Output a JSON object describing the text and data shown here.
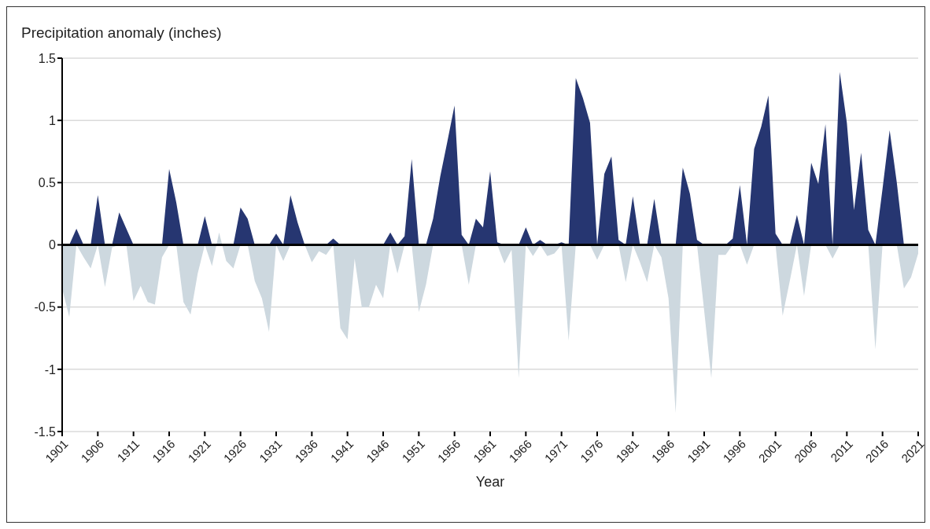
{
  "chart_data": {
    "type": "area",
    "ylabel": "Precipitation anomaly (inches)",
    "xlabel": "Year",
    "x": [
      1901,
      1902,
      1903,
      1904,
      1905,
      1906,
      1907,
      1908,
      1909,
      1910,
      1911,
      1912,
      1913,
      1914,
      1915,
      1916,
      1917,
      1918,
      1919,
      1920,
      1921,
      1922,
      1923,
      1924,
      1925,
      1926,
      1927,
      1928,
      1929,
      1930,
      1931,
      1932,
      1933,
      1934,
      1935,
      1936,
      1937,
      1938,
      1939,
      1940,
      1941,
      1942,
      1943,
      1944,
      1945,
      1946,
      1947,
      1948,
      1949,
      1950,
      1951,
      1952,
      1953,
      1954,
      1955,
      1956,
      1957,
      1958,
      1959,
      1960,
      1961,
      1962,
      1963,
      1964,
      1965,
      1966,
      1967,
      1968,
      1969,
      1970,
      1971,
      1972,
      1973,
      1974,
      1975,
      1976,
      1977,
      1978,
      1979,
      1980,
      1981,
      1982,
      1983,
      1984,
      1985,
      1986,
      1987,
      1988,
      1989,
      1990,
      1991,
      1992,
      1993,
      1994,
      1995,
      1996,
      1997,
      1998,
      1999,
      2000,
      2001,
      2002,
      2003,
      2004,
      2005,
      2006,
      2007,
      2008,
      2009,
      2010,
      2011,
      2012,
      2013,
      2014,
      2015,
      2016,
      2017,
      2018,
      2019,
      2020,
      2021
    ],
    "series": [
      {
        "color": "#cdd8df",
        "values": [
          -0.35,
          -0.58,
          0,
          -0.1,
          -0.19,
          0,
          -0.34,
          -0.02,
          0,
          0,
          -0.45,
          -0.33,
          -0.46,
          -0.48,
          -0.1,
          0,
          0,
          -0.46,
          -0.56,
          -0.23,
          0,
          -0.17,
          0.1,
          -0.13,
          -0.19,
          0,
          0,
          -0.29,
          -0.43,
          -0.7,
          0,
          -0.13,
          0,
          0,
          0,
          -0.14,
          -0.05,
          -0.08,
          0,
          -0.67,
          -0.76,
          -0.11,
          -0.5,
          -0.5,
          -0.32,
          -0.43,
          0,
          -0.23,
          0,
          0,
          -0.54,
          -0.32,
          0,
          0,
          0,
          0,
          0,
          -0.32,
          0,
          0,
          0,
          0,
          -0.15,
          -0.04,
          -1.07,
          0,
          -0.09,
          0,
          -0.09,
          -0.07,
          0,
          -0.77,
          0,
          0,
          0,
          -0.12,
          0,
          0,
          0,
          -0.3,
          0,
          -0.14,
          -0.3,
          0,
          -0.1,
          -0.43,
          -1.35,
          0,
          0,
          0,
          -0.53,
          -1.07,
          -0.08,
          -0.08,
          0,
          0,
          -0.16,
          0,
          0,
          0,
          0,
          -0.57,
          -0.29,
          0,
          -0.41,
          0,
          0,
          0,
          -0.11,
          0,
          0,
          0,
          0,
          0,
          -0.84,
          0,
          0,
          0,
          -0.35,
          -0.26,
          -0.07
        ]
      },
      {
        "color": "#263671",
        "values": [
          0,
          0,
          0.13,
          0,
          0,
          0.4,
          0,
          0,
          0.26,
          0.13,
          0,
          0,
          0,
          0,
          0,
          0.61,
          0.34,
          0,
          0,
          0,
          0.23,
          0,
          0,
          0,
          0,
          0.3,
          0.21,
          0,
          0,
          0,
          0.09,
          0,
          0.4,
          0.18,
          0,
          0,
          0,
          0,
          0.05,
          0,
          0,
          0,
          0,
          0,
          0,
          0,
          0.1,
          0,
          0.07,
          0.69,
          0,
          0,
          0.21,
          0.55,
          0.83,
          1.12,
          0.08,
          0,
          0.21,
          0.14,
          0.59,
          0.02,
          0,
          0,
          0,
          0.14,
          0,
          0.04,
          0,
          0,
          0.02,
          0,
          1.34,
          1.18,
          0.98,
          0,
          0.57,
          0.71,
          0.04,
          0,
          0.39,
          0,
          0,
          0.37,
          0,
          0,
          0,
          0.62,
          0.41,
          0.04,
          0,
          0,
          0,
          0,
          0.05,
          0.48,
          0,
          0.77,
          0.95,
          1.2,
          0.09,
          0,
          0,
          0.24,
          0,
          0.66,
          0.49,
          0.97,
          0,
          1.39,
          0.98,
          0.28,
          0.74,
          0.12,
          0,
          0.45,
          0.92,
          0.5,
          0,
          0,
          0
        ]
      }
    ],
    "xlim": [
      1901,
      2021
    ],
    "xticks": [
      1901,
      1906,
      1911,
      1916,
      1921,
      1926,
      1931,
      1936,
      1941,
      1946,
      1951,
      1956,
      1961,
      1966,
      1971,
      1976,
      1981,
      1986,
      1991,
      1996,
      2001,
      2006,
      2011,
      2016,
      2021
    ],
    "ylim": [
      -1.5,
      1.5
    ],
    "yticks": [
      -1.5,
      -1,
      -0.5,
      0,
      0.5,
      1,
      1.5
    ],
    "grid": "y"
  }
}
